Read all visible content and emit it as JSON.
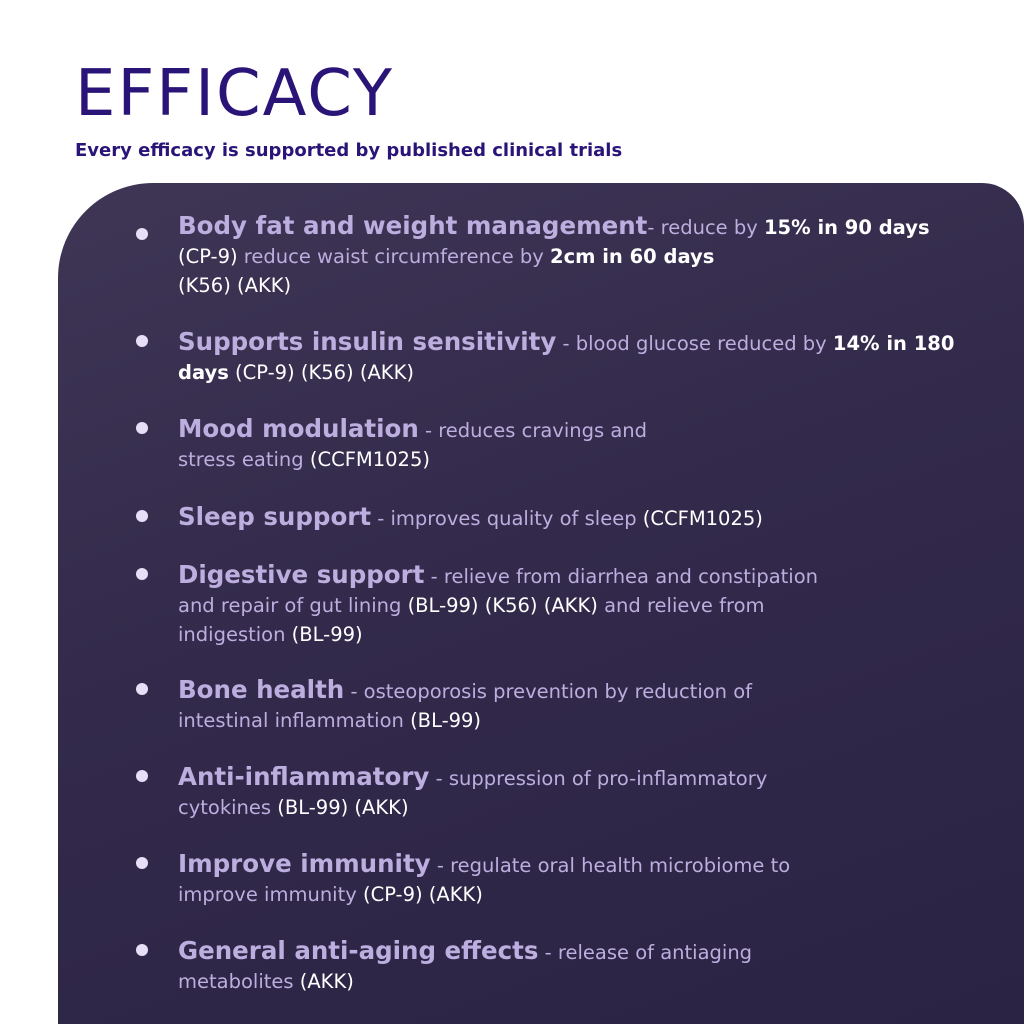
{
  "header": {
    "title": "EFFICACY",
    "subtitle": "Every efficacy is supported by published clinical trials"
  },
  "colors": {
    "title": "#2a1478",
    "panel": "#352c4d",
    "heading": "#bcaedf",
    "highlight": "#ffffff"
  },
  "items": [
    {
      "heading": "Body fat and weight management",
      "desc1": "- reduce by ",
      "hl1": "15% in 90 days",
      "ref1": "(CP-9)",
      "desc2": " reduce waist circumference by ",
      "hl2": "2cm in 60 days",
      "ref2": "(K56) (AKK)"
    },
    {
      "heading": "Supports insulin sensitivity",
      "desc1": " - blood glucose reduced by ",
      "hl1": "14% in 180 days",
      "ref1": "(CP-9) (K56) (AKK)"
    },
    {
      "heading": "Mood modulation",
      "desc1": " - reduces cravings and",
      "desc2": "stress eating ",
      "ref1": "(CCFM1025)"
    },
    {
      "heading": "Sleep support",
      "desc1": " - improves quality of sleep ",
      "ref1": "(CCFM1025)"
    },
    {
      "heading": "Digestive support",
      "desc1": " - relieve from diarrhea and constipation",
      "desc2": "and repair of gut lining ",
      "ref1": "(BL-99) (K56) (AKK)",
      "desc3": " and  relieve from",
      "desc4": "indigestion  ",
      "ref2": "(BL-99)"
    },
    {
      "heading": "Bone health",
      "desc1": " - osteoporosis prevention by reduction of",
      "desc2": "intestinal inflammation ",
      "ref1": "(BL-99)"
    },
    {
      "heading": "Anti-inflammatory",
      "desc1": " - suppression of pro-inflammatory",
      "desc2": "cytokines ",
      "ref1": "(BL-99) (AKK)"
    },
    {
      "heading": "Improve immunity",
      "desc1": " - regulate oral health microbiome to",
      "desc2": "improve immunity ",
      "ref1": "(CP-9) (AKK)"
    },
    {
      "heading": "General anti-aging effects",
      "desc1": " - release of antiaging",
      "desc2": "metabolites ",
      "ref1": "(AKK)"
    }
  ]
}
